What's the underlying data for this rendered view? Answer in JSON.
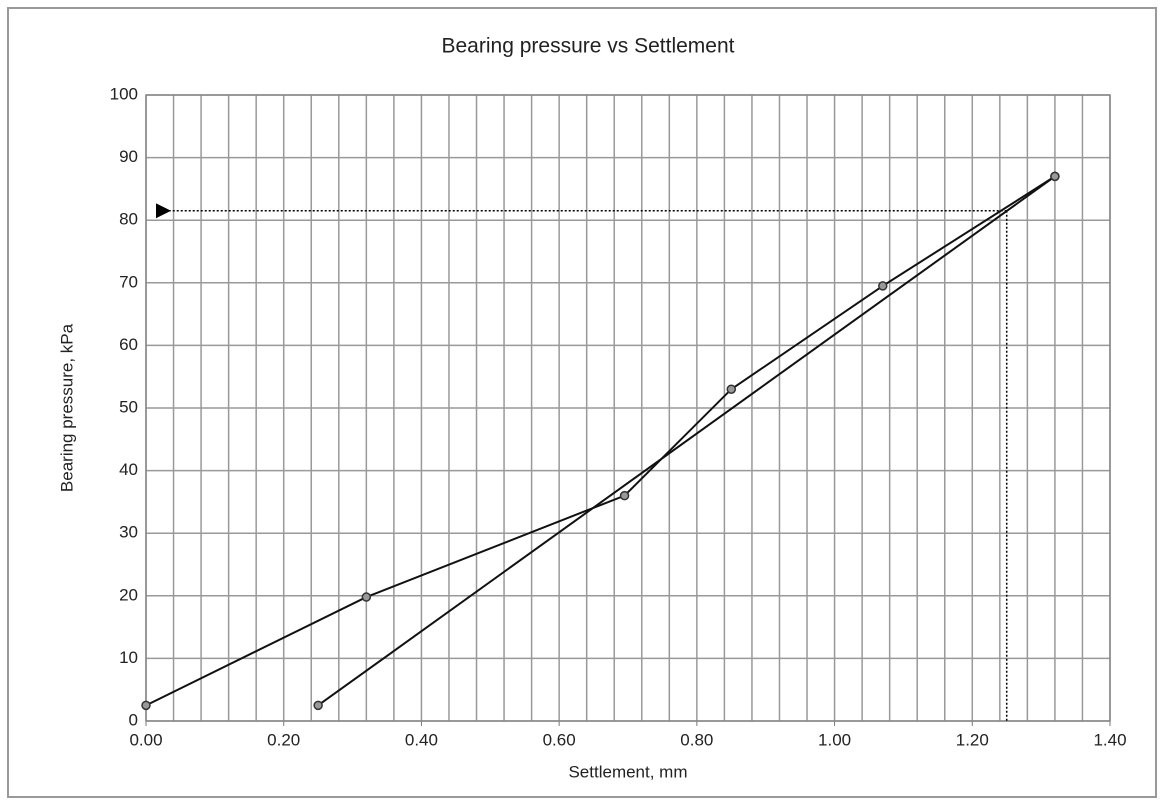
{
  "chart_data": {
    "type": "line",
    "title": "Bearing pressure  vs Settlement",
    "xlabel": "Settlement, mm",
    "ylabel": "Bearing pressure, kPa",
    "series": [
      {
        "color": "#111111",
        "marker_color": "#999999",
        "x": [
          0.0,
          0.32,
          0.695,
          0.85,
          1.07,
          1.32
        ],
        "values": [
          2.5,
          19.8,
          36,
          53,
          69.5,
          87
        ]
      },
      {
        "color": "#111111",
        "marker_color": "#999999",
        "x": [
          0.25,
          1.32
        ],
        "values": [
          2.5,
          87
        ]
      }
    ],
    "xlim": [
      0,
      1.4
    ],
    "ylim": [
      0,
      100
    ],
    "xticks": [
      {
        "value": 0,
        "label": "0.00"
      },
      {
        "value": 0.2,
        "label": "0.20"
      },
      {
        "value": 0.4,
        "label": "0.40"
      },
      {
        "value": 0.6,
        "label": "0.60"
      },
      {
        "value": 0.8,
        "label": "0.80"
      },
      {
        "value": 1.0,
        "label": "1.00"
      },
      {
        "value": 1.2,
        "label": "1.20"
      },
      {
        "value": 1.4,
        "label": "1.40"
      }
    ],
    "xgrid": [
      0,
      0.04,
      0.08,
      0.12,
      0.16,
      0.2,
      0.24,
      0.28,
      0.32,
      0.36,
      0.4,
      0.44,
      0.48,
      0.52,
      0.56,
      0.6,
      0.64,
      0.68,
      0.72,
      0.76,
      0.8,
      0.84,
      0.88,
      0.92,
      0.96,
      1.0,
      1.04,
      1.08,
      1.12,
      1.16,
      1.2,
      1.24,
      1.28,
      1.32,
      1.36,
      1.4
    ],
    "yticks": [
      0,
      10,
      20,
      30,
      40,
      50,
      60,
      70,
      80,
      90,
      100
    ],
    "grid": true,
    "guide": {
      "x": 1.25,
      "y": 81.5
    }
  }
}
